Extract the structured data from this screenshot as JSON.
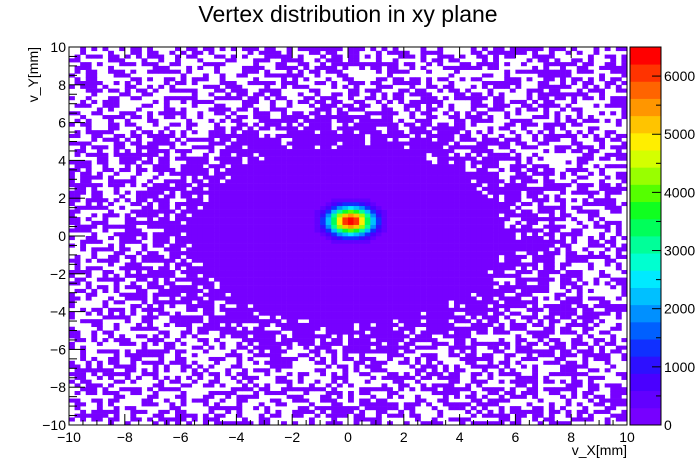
{
  "chart_data": {
    "type": "heatmap",
    "title": "Vertex distribution in xy plane",
    "xlabel": "v_X[mm]",
    "ylabel": "v_Y[mm]",
    "xlim": [
      -10,
      10
    ],
    "ylim": [
      -10,
      10
    ],
    "bins": [
      100,
      100
    ],
    "x_ticks": [
      -10,
      -8,
      -6,
      -4,
      -2,
      0,
      2,
      4,
      6,
      8,
      10
    ],
    "y_ticks": [
      -10,
      -8,
      -6,
      -4,
      -2,
      0,
      2,
      4,
      6,
      8,
      10
    ],
    "x_tick_labels": [
      "−10",
      "−8",
      "−6",
      "−4",
      "−2",
      "0",
      "2",
      "4",
      "6",
      "8",
      "10"
    ],
    "y_tick_labels": [
      "−10",
      "−8",
      "−6",
      "−4",
      "−2",
      "0",
      "2",
      "4",
      "6",
      "8",
      "10"
    ],
    "zlim": [
      0,
      6500
    ],
    "z_ticks": [
      0,
      1000,
      2000,
      3000,
      4000,
      5000,
      6000
    ],
    "z_tick_labels": [
      "0",
      "1000",
      "2000",
      "3000",
      "4000",
      "5000",
      "6000"
    ],
    "peak": {
      "x": 0.1,
      "y": 0.8,
      "value": 6500,
      "sigma_x": 0.55,
      "sigma_y": 0.5
    },
    "halo": {
      "x": 0.0,
      "y": 0.0,
      "rx": 6.5,
      "ry": 5.5
    },
    "palette": [
      "#7700ff",
      "#6200ff",
      "#4a00ff",
      "#2d10ff",
      "#1030ff",
      "#0060ff",
      "#0090ff",
      "#00c0ff",
      "#00eaff",
      "#00ffd0",
      "#00ff99",
      "#00ff5a",
      "#10ff20",
      "#55ff00",
      "#99ff00",
      "#d4ff00",
      "#ffee00",
      "#ffc400",
      "#ff9600",
      "#ff6400",
      "#ff3300",
      "#ff0000"
    ],
    "grid": false,
    "legend": "colorbar-right"
  }
}
